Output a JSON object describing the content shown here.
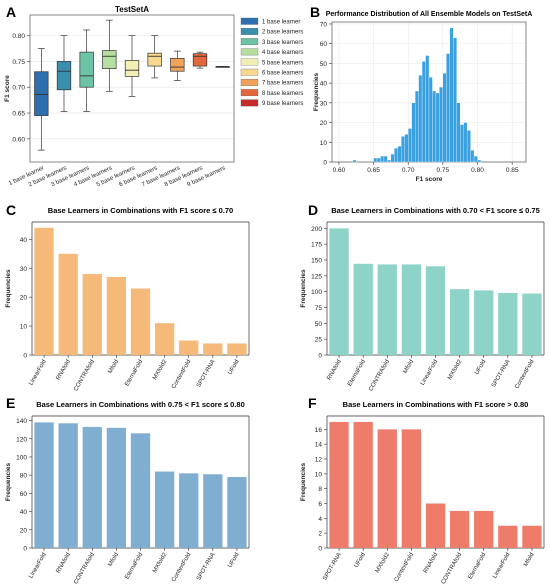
{
  "chart_data": [
    {
      "panel_label": "A",
      "type": "box",
      "title": "TestSetA",
      "xlabel": "",
      "ylabel": "F1 score",
      "ylim": [
        0.555,
        0.84
      ],
      "yticks": [
        0.6,
        0.65,
        0.7,
        0.75,
        0.8
      ],
      "grid": true,
      "legend_position": "right",
      "categories": [
        "1 base learner",
        "2 base learners",
        "3 base learners",
        "4 base learners",
        "5 base learners",
        "6 base learners",
        "7 base learners",
        "8 base learners",
        "9 base learners"
      ],
      "colors": [
        "#2e6fb0",
        "#3a8fae",
        "#6cc3a6",
        "#b5dea0",
        "#f2efb5",
        "#f7d88f",
        "#f3a25c",
        "#e4663c",
        "#c62b2b"
      ],
      "boxes": [
        {
          "whisker_low": 0.578,
          "q1": 0.645,
          "median": 0.686,
          "q3": 0.73,
          "whisker_high": 0.775
        },
        {
          "whisker_low": 0.653,
          "q1": 0.695,
          "median": 0.731,
          "q3": 0.75,
          "whisker_high": 0.8
        },
        {
          "whisker_low": 0.653,
          "q1": 0.7,
          "median": 0.722,
          "q3": 0.768,
          "whisker_high": 0.811
        },
        {
          "whisker_low": 0.692,
          "q1": 0.736,
          "median": 0.76,
          "q3": 0.771,
          "whisker_high": 0.83
        },
        {
          "whisker_low": 0.682,
          "q1": 0.721,
          "median": 0.733,
          "q3": 0.752,
          "whisker_high": 0.8
        },
        {
          "whisker_low": 0.718,
          "q1": 0.741,
          "median": 0.76,
          "q3": 0.766,
          "whisker_high": 0.8
        },
        {
          "whisker_low": 0.713,
          "q1": 0.731,
          "median": 0.739,
          "q3": 0.756,
          "whisker_high": 0.77
        },
        {
          "whisker_low": 0.737,
          "q1": 0.741,
          "median": 0.76,
          "q3": 0.765,
          "whisker_high": 0.768
        },
        {
          "whisker_low": 0.74,
          "q1": 0.74,
          "median": 0.74,
          "q3": 0.74,
          "whisker_high": 0.74
        }
      ]
    },
    {
      "panel_label": "B",
      "type": "histogram",
      "title": "Performance Distribution of All Ensemble Models on TestSetA",
      "xlabel": "F1 score",
      "ylabel": "Frequencies",
      "xlim": [
        0.59,
        0.87
      ],
      "ylim": [
        0,
        71
      ],
      "xticks": [
        0.6,
        0.65,
        0.7,
        0.75,
        0.8,
        0.85
      ],
      "yticks": [
        0,
        10,
        20,
        30,
        40,
        50,
        60,
        70
      ],
      "grid": true,
      "color": "#3aa0e0",
      "bin_width": 0.005,
      "bins": [
        {
          "x": 0.62,
          "count": 1
        },
        {
          "x": 0.65,
          "count": 2
        },
        {
          "x": 0.655,
          "count": 2
        },
        {
          "x": 0.66,
          "count": 3
        },
        {
          "x": 0.665,
          "count": 3
        },
        {
          "x": 0.67,
          "count": 1
        },
        {
          "x": 0.675,
          "count": 4
        },
        {
          "x": 0.68,
          "count": 7
        },
        {
          "x": 0.685,
          "count": 8
        },
        {
          "x": 0.69,
          "count": 13
        },
        {
          "x": 0.695,
          "count": 14
        },
        {
          "x": 0.7,
          "count": 17
        },
        {
          "x": 0.705,
          "count": 30
        },
        {
          "x": 0.71,
          "count": 36
        },
        {
          "x": 0.715,
          "count": 44
        },
        {
          "x": 0.72,
          "count": 51
        },
        {
          "x": 0.725,
          "count": 54
        },
        {
          "x": 0.73,
          "count": 43
        },
        {
          "x": 0.735,
          "count": 36
        },
        {
          "x": 0.74,
          "count": 35
        },
        {
          "x": 0.745,
          "count": 38
        },
        {
          "x": 0.75,
          "count": 45
        },
        {
          "x": 0.755,
          "count": 55
        },
        {
          "x": 0.76,
          "count": 68
        },
        {
          "x": 0.765,
          "count": 63
        },
        {
          "x": 0.77,
          "count": 30
        },
        {
          "x": 0.775,
          "count": 19
        },
        {
          "x": 0.78,
          "count": 20
        },
        {
          "x": 0.785,
          "count": 16
        },
        {
          "x": 0.79,
          "count": 6
        },
        {
          "x": 0.795,
          "count": 3
        },
        {
          "x": 0.8,
          "count": 1
        }
      ]
    },
    {
      "panel_label": "C",
      "type": "bar",
      "title": "Base Learners in Combinations with F1 score ≤ 0.70",
      "xlabel": "",
      "ylabel": "Frequencies",
      "ylim": [
        0,
        46
      ],
      "yticks": [
        0,
        10,
        20,
        30,
        40
      ],
      "color": "#f5b97a",
      "categories": [
        "LinearFold",
        "RNAfold",
        "CONTRAfold",
        "Mfold",
        "EternaFold",
        "MXfold2",
        "ContextFold",
        "SPOT-RNA",
        "UFold"
      ],
      "values": [
        44,
        35,
        28,
        27,
        23,
        11,
        5,
        4,
        4
      ]
    },
    {
      "panel_label": "D",
      "type": "bar",
      "title": "Base Learners in Combinations with 0.70 < F1 score ≤ 0.75",
      "xlabel": "",
      "ylabel": "Frequencies",
      "ylim": [
        0,
        210
      ],
      "yticks": [
        0,
        25,
        50,
        75,
        100,
        125,
        150,
        175,
        200
      ],
      "color": "#8dd3c7",
      "categories": [
        "RNAfold",
        "EternaFold",
        "CONTRAfold",
        "Mfold",
        "LinearFold",
        "MXfold2",
        "UFold",
        "SPOT-RNA",
        "ContextFold"
      ],
      "values": [
        200,
        144,
        143,
        143,
        140,
        104,
        102,
        98,
        97
      ]
    },
    {
      "panel_label": "E",
      "type": "bar",
      "title": "Base Learners in Combinations with 0.75 < F1 score ≤ 0.80",
      "xlabel": "",
      "ylabel": "Frequencies",
      "ylim": [
        0,
        145
      ],
      "yticks": [
        0,
        20,
        40,
        60,
        80,
        100,
        120,
        140
      ],
      "color": "#80aed0",
      "categories": [
        "LinearFold",
        "RNAfold",
        "CONTRAfold",
        "Mfold",
        "EternaFold",
        "MXfold2",
        "ContextFold",
        "SPOT-RNA",
        "UFold"
      ],
      "values": [
        138,
        137,
        133,
        132,
        126,
        84,
        82,
        81,
        78
      ]
    },
    {
      "panel_label": "F",
      "type": "bar",
      "title": "Base Learners in Combinations with F1 score > 0.80",
      "xlabel": "",
      "ylabel": "Frequencies",
      "ylim": [
        0,
        17.8
      ],
      "yticks": [
        0,
        2,
        4,
        6,
        8,
        10,
        12,
        14,
        16
      ],
      "color": "#ee7c6b",
      "categories": [
        "SPOT-RNA",
        "UFold",
        "MXfold2",
        "ContextFold",
        "RNAfold",
        "CONTRAfold",
        "EternaFold",
        "LinearFold",
        "Mfold"
      ],
      "values": [
        17,
        17,
        16,
        16,
        6,
        5,
        5,
        3,
        3
      ]
    }
  ]
}
